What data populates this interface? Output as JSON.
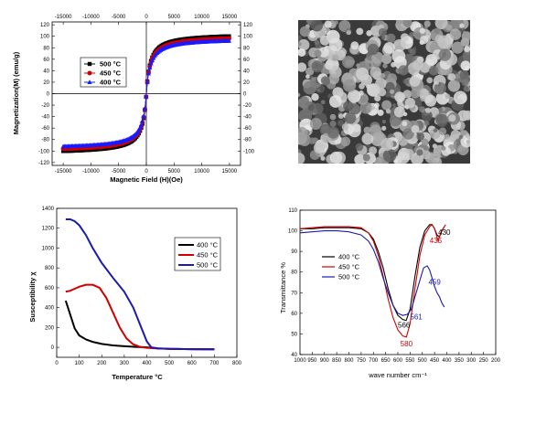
{
  "chart_data": [
    {
      "type": "line",
      "xlabel": "Magnetic Field (H)(Oe)",
      "ylabel": "Magnetization(M) (emu/g)",
      "xlim": [
        -17000,
        17000
      ],
      "ylim": [
        -125,
        125
      ],
      "x_ticks": [
        "-15000",
        "-10000",
        "-5000",
        "0",
        "5000",
        "10000",
        "15000"
      ],
      "y_ticks_left": [
        "-120",
        "-100",
        "-80",
        "-60",
        "-40",
        "-20",
        "0",
        "20",
        "40",
        "60",
        "80",
        "100",
        "120"
      ],
      "y_ticks_right": [
        "-100",
        "-80",
        "-60",
        "-40",
        "-20",
        "0",
        "20",
        "40",
        "60",
        "80",
        "100",
        "120"
      ],
      "legend_position": "center-left",
      "series": [
        {
          "name": "500 °C",
          "color": "#000000",
          "marker": "square",
          "ms": 100
        },
        {
          "name": "450 °C",
          "color": "#d00000",
          "marker": "circle",
          "ms": 96
        },
        {
          "name": "400 °C",
          "color": "#1a1aff",
          "marker": "triangle",
          "ms": 92
        }
      ]
    },
    {
      "type": "image",
      "description": "SEM micrograph"
    },
    {
      "type": "line",
      "xlabel": "Temperature °C",
      "ylabel": "Susceptibility χ",
      "xlim": [
        0,
        800
      ],
      "ylim": [
        -100,
        1400
      ],
      "x_ticks": [
        "0",
        "100",
        "200",
        "300",
        "400",
        "500",
        "600",
        "700",
        "800"
      ],
      "y_ticks": [
        "0",
        "200",
        "400",
        "600",
        "800",
        "1000",
        "1200",
        "1400"
      ],
      "legend_position": "top-right",
      "series": [
        {
          "name": "400 °C",
          "color": "#000000",
          "x": [
            40,
            60,
            80,
            100,
            130,
            160,
            200,
            250,
            300,
            350,
            400,
            450,
            500,
            600,
            700
          ],
          "y": [
            470,
            330,
            190,
            120,
            80,
            55,
            35,
            20,
            12,
            5,
            0,
            -10,
            -15,
            -18,
            -20
          ]
        },
        {
          "name": "450 °C",
          "color": "#d00000",
          "x": [
            40,
            60,
            80,
            100,
            130,
            160,
            190,
            220,
            250,
            280,
            310,
            340,
            370,
            400,
            450,
            500,
            600,
            700
          ],
          "y": [
            560,
            570,
            590,
            610,
            630,
            630,
            600,
            500,
            350,
            200,
            90,
            30,
            5,
            -5,
            -12,
            -15,
            -18,
            -20
          ]
        },
        {
          "name": "500 °C",
          "color": "#1a1ab0",
          "x": [
            40,
            60,
            80,
            100,
            130,
            160,
            200,
            250,
            300,
            340,
            370,
            400,
            420,
            450,
            500,
            600,
            700
          ],
          "y": [
            1290,
            1290,
            1270,
            1230,
            1130,
            1000,
            850,
            700,
            560,
            400,
            230,
            60,
            0,
            -10,
            -15,
            -18,
            -20
          ]
        }
      ]
    },
    {
      "type": "line",
      "xlabel": "wave number cm⁻¹",
      "ylabel": "Transmittance %",
      "xlim": [
        1000,
        200
      ],
      "ylim": [
        40,
        110
      ],
      "x_ticks": [
        "1000",
        "950",
        "900",
        "850",
        "800",
        "750",
        "700",
        "650",
        "600",
        "550",
        "500",
        "450",
        "400",
        "350",
        "300",
        "250",
        "200"
      ],
      "y_ticks": [
        "40",
        "50",
        "60",
        "70",
        "80",
        "90",
        "100",
        "110"
      ],
      "legend_position": "center-left",
      "annotations": [
        {
          "text": "566",
          "x": 575,
          "y": 53,
          "color": "#000000"
        },
        {
          "text": "580",
          "x": 565,
          "y": 44,
          "color": "#d00000"
        },
        {
          "text": "561",
          "x": 525,
          "y": 57,
          "color": "#1a1ab0"
        },
        {
          "text": "459",
          "x": 450,
          "y": 74,
          "color": "#1a1ab0"
        },
        {
          "text": "435",
          "x": 445,
          "y": 94,
          "color": "#d00000"
        },
        {
          "text": "430",
          "x": 410,
          "y": 98,
          "color": "#000000"
        }
      ],
      "series": [
        {
          "name": "400 °C",
          "color": "#000000",
          "x": [
            1000,
            950,
            900,
            850,
            800,
            750,
            720,
            700,
            680,
            660,
            640,
            620,
            600,
            580,
            566,
            550,
            530,
            510,
            490,
            470,
            460,
            450,
            440,
            430,
            420,
            410
          ],
          "y": [
            101,
            101,
            101.5,
            101.5,
            101.5,
            101,
            99,
            96,
            90,
            82,
            72,
            64,
            59,
            57,
            56.5,
            62,
            78,
            92,
            100,
            103,
            103,
            101,
            98,
            97,
            100,
            102
          ]
        },
        {
          "name": "450 °C",
          "color": "#d00000",
          "x": [
            1000,
            950,
            900,
            850,
            800,
            750,
            720,
            700,
            680,
            660,
            640,
            620,
            600,
            580,
            565,
            550,
            530,
            510,
            490,
            470,
            460,
            450,
            440,
            435,
            425,
            415,
            405
          ],
          "y": [
            101,
            101.5,
            102,
            102,
            102,
            101.5,
            99,
            95,
            88,
            78,
            67,
            58,
            52,
            49,
            48.5,
            55,
            72,
            88,
            98,
            102,
            103,
            101,
            97,
            95,
            99,
            101,
            103
          ]
        },
        {
          "name": "500 °C",
          "color": "#1a1ab0",
          "x": [
            1000,
            950,
            900,
            850,
            800,
            750,
            720,
            700,
            680,
            660,
            640,
            620,
            600,
            580,
            561,
            545,
            530,
            510,
            495,
            480,
            470,
            460,
            450,
            440,
            430,
            420,
            410
          ],
          "y": [
            99,
            99.5,
            100,
            100,
            99.5,
            98,
            95,
            91,
            85,
            77,
            70,
            64,
            60,
            59,
            59.5,
            62,
            68,
            76,
            82,
            83,
            81,
            77,
            73,
            70,
            68,
            65,
            63
          ]
        }
      ]
    }
  ]
}
